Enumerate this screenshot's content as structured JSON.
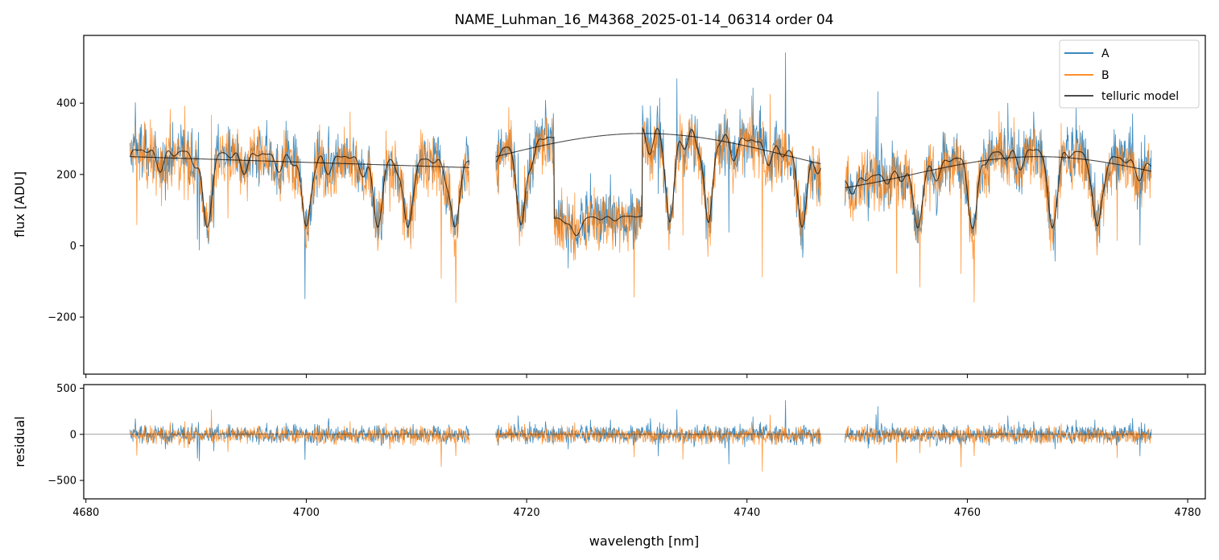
{
  "chart_data": [
    {
      "type": "line",
      "title": "NAME_Luhman_16_M4368_2025-01-14_06314  order 04",
      "xlabel": "",
      "ylabel": "flux [ADU]",
      "xlim": [
        4679.8,
        4781.6
      ],
      "ylim": [
        -360,
        590
      ],
      "yticks": [
        -200,
        0,
        200,
        400
      ],
      "ytick_labels": [
        "−200",
        "0",
        "200",
        "400"
      ],
      "legend_position": "top-right",
      "segments_nm": [
        [
          4684.0,
          4714.8
        ],
        [
          4717.2,
          4746.7
        ],
        [
          4748.9,
          4776.7
        ]
      ],
      "series": [
        {
          "name": "A",
          "color": "#1f77b4",
          "approx_level": 200,
          "approx_noise": 80
        },
        {
          "name": "B",
          "color": "#ff7f0e",
          "approx_level": 180,
          "approx_noise": 90
        },
        {
          "name": "telluric model",
          "color": "#000000",
          "approx_level": 200
        }
      ]
    },
    {
      "type": "line",
      "title": "",
      "xlabel": "wavelength [nm]",
      "ylabel": "residual",
      "xlim": [
        4679.8,
        4781.6
      ],
      "ylim": [
        -700,
        540
      ],
      "xticks": [
        4680,
        4700,
        4720,
        4740,
        4760,
        4780
      ],
      "xtick_labels": [
        "4680",
        "4700",
        "4720",
        "4740",
        "4760",
        "4780"
      ],
      "yticks": [
        -500,
        0,
        500
      ],
      "ytick_labels": [
        "−500",
        "0",
        "500"
      ],
      "reference_line": 0,
      "series": [
        {
          "name": "A",
          "color": "#1f77b4",
          "approx_noise": 80
        },
        {
          "name": "B",
          "color": "#ff7f0e",
          "approx_noise": 70
        }
      ]
    }
  ]
}
